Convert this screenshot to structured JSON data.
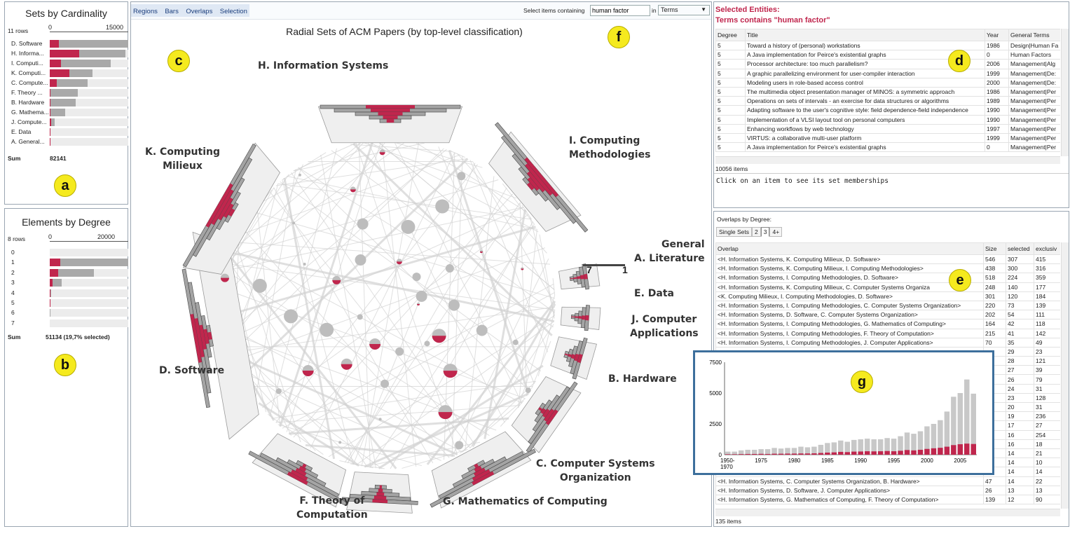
{
  "panel_a": {
    "title": "Sets by Cardinality",
    "rows_label": "11 rows",
    "scale_start": "0",
    "scale_end": "15000",
    "sets": [
      {
        "label": "D. Software",
        "total": 15000,
        "selected": 1700
      },
      {
        "label": "H. Informa...",
        "total": 14500,
        "selected": 5600
      },
      {
        "label": "I. Computi...",
        "total": 11700,
        "selected": 2200
      },
      {
        "label": "K. Computi...",
        "total": 8200,
        "selected": 3700
      },
      {
        "label": "C. Compute...",
        "total": 7200,
        "selected": 1300
      },
      {
        "label": "F. Theory ...",
        "total": 5300,
        "selected": 200
      },
      {
        "label": "B. Hardware",
        "total": 4900,
        "selected": 200
      },
      {
        "label": "G. Mathema...",
        "total": 3000,
        "selected": 100
      },
      {
        "label": "J. Compute...",
        "total": 900,
        "selected": 300
      },
      {
        "label": "E. Data",
        "total": 200,
        "selected": 150
      },
      {
        "label": "A. General...",
        "total": 150,
        "selected": 30
      }
    ],
    "sum_label": "Sum",
    "sum_value": "82141",
    "badge": "a"
  },
  "panel_b": {
    "title": "Elements by Degree",
    "rows_label": "8 rows",
    "scale_start": "0",
    "scale_end": "20000",
    "degrees": [
      {
        "label": "0",
        "total": 0,
        "selected": 0
      },
      {
        "label": "1",
        "total": 29500,
        "selected": 4000
      },
      {
        "label": "2",
        "total": 16500,
        "selected": 3200
      },
      {
        "label": "3",
        "total": 4400,
        "selected": 1000
      },
      {
        "label": "4",
        "total": 500,
        "selected": 200
      },
      {
        "label": "5",
        "total": 150,
        "selected": 80
      },
      {
        "label": "6",
        "total": 50,
        "selected": 20
      },
      {
        "label": "7",
        "total": 10,
        "selected": 5
      }
    ],
    "sum_label": "Sum",
    "sum_value": "51134 (19,7% selected)",
    "badge": "b"
  },
  "toolbar": {
    "tabs": [
      "Regions",
      "Bars",
      "Overlaps",
      "Selection"
    ],
    "select_label": "Select items containing",
    "search_value": "human factor",
    "in_label": "in",
    "dropdown_value": "Terms"
  },
  "main": {
    "title": "Radial Sets of ACM Papers (by top-level classification)",
    "badge_c": "c",
    "badge_f": "f",
    "set_labels": {
      "H": "H. Information Systems",
      "I": "I. Computing\nMethodologies",
      "K": "K. Computing\nMilieux",
      "A": "General\nA. Literature",
      "E": "E. Data",
      "J": "J. Computer\nApplications",
      "B": "B. Hardware",
      "C": "C. Computer Systems\nOrganization",
      "G": "G. Mathematics of Computing",
      "F": "F. Theory of\nComputation",
      "D": "D. Software"
    },
    "legend_left": "7",
    "legend_right": "1"
  },
  "panel_d": {
    "heading": "Selected Entities:",
    "subheading": "Terms contains \"human factor\"",
    "columns": [
      "Degree",
      "Title",
      "Year",
      "General Terms"
    ],
    "rows": [
      [
        "5",
        "Toward a history of (personal) workstations",
        "1986",
        "Design|Human Fa"
      ],
      [
        "5",
        "A Java implementation for Peirce's existential graphs",
        "0",
        "Human Factors"
      ],
      [
        "5",
        "Processor architecture: too much parallelism?",
        "2006",
        "Management|Alg"
      ],
      [
        "5",
        "A graphic parallelizing environment for user-compiler interaction",
        "1999",
        "Management|De:"
      ],
      [
        "5",
        "Modeling users in role-based access control",
        "2000",
        "Management|De:"
      ],
      [
        "5",
        "The multimedia object presentation manager of MINOS: a symmetric approach",
        "1986",
        "Management|Per"
      ],
      [
        "5",
        "Operations on sets of intervals - an exercise for data structures or algorithms",
        "1989",
        "Management|Per"
      ],
      [
        "5",
        "Adapting software to the user's cognitive style: field dependence-field independence",
        "1990",
        "Management|Per"
      ],
      [
        "5",
        "Implementation of a VLSI layout tool on personal computers",
        "1990",
        "Management|Per"
      ],
      [
        "5",
        "Enhancing workflows by web technology",
        "1997",
        "Management|Per"
      ],
      [
        "5",
        "VIRTUS: a collaborative multi-user platform",
        "1999",
        "Management|Per"
      ],
      [
        "5",
        "A Java implementation for Peirce's existential graphs",
        "0",
        "Management|Per"
      ]
    ],
    "item_count": "10056 items",
    "hint": "Click on an item to see its set memberships",
    "badge": "d"
  },
  "panel_e": {
    "heading": "Overlaps by Degree:",
    "tabs": [
      "Single Sets",
      "2",
      "3",
      "4+"
    ],
    "columns": [
      "Overlap",
      "Size",
      "selected",
      "exclusiv"
    ],
    "rows": [
      [
        "<H. Information Systems, K. Computing Milieux, D. Software>",
        "546",
        "307",
        "415"
      ],
      [
        "<H. Information Systems, K. Computing Milieux, I. Computing Methodologies>",
        "438",
        "300",
        "316"
      ],
      [
        "<H. Information Systems, I. Computing Methodologies, D. Software>",
        "518",
        "224",
        "359"
      ],
      [
        "<H. Information Systems, K. Computing Milieux, C. Computer Systems Organiza",
        "248",
        "140",
        "177"
      ],
      [
        "<K. Computing Milieux, I. Computing Methodologies, D. Software>",
        "301",
        "120",
        "184"
      ],
      [
        "<H. Information Systems, I. Computing Methodologies, C. Computer Systems Organization>",
        "220",
        "73",
        "139"
      ],
      [
        "<H. Information Systems, D. Software, C. Computer Systems Organization>",
        "202",
        "54",
        "111"
      ],
      [
        "<H. Information Systems, I. Computing Methodologies, G. Mathematics of Computing>",
        "164",
        "42",
        "118"
      ],
      [
        "<H. Information Systems, I. Computing Methodologies, F. Theory of Computation>",
        "215",
        "41",
        "142"
      ],
      [
        "<H. Information Systems, I. Computing Methodologies, J. Computer Applications>",
        "70",
        "35",
        "49"
      ],
      [
        "",
        "",
        "29",
        "23"
      ],
      [
        "",
        "",
        "28",
        "121"
      ],
      [
        "",
        "",
        "27",
        "39"
      ],
      [
        "",
        "",
        "26",
        "79"
      ],
      [
        "",
        "",
        "24",
        "31"
      ],
      [
        "",
        "",
        "23",
        "128"
      ],
      [
        "",
        "",
        "20",
        "31"
      ],
      [
        "",
        "",
        "19",
        "236"
      ],
      [
        "",
        "",
        "17",
        "27"
      ],
      [
        "",
        "",
        "16",
        "254"
      ],
      [
        "",
        "",
        "16",
        "18"
      ],
      [
        "",
        "",
        "14",
        "21"
      ],
      [
        "",
        "",
        "14",
        "10"
      ],
      [
        "",
        "",
        "14",
        "14"
      ],
      [
        "<H. Information Systems, C. Computer Systems Organization, B. Hardware>",
        "47",
        "14",
        "22"
      ],
      [
        "<H. Information Systems, D. Software, J. Computer Applications>",
        "26",
        "13",
        "13"
      ],
      [
        "<H. Information Systems, G. Mathematics of Computing, F. Theory of Computation>",
        "139",
        "12",
        "90"
      ]
    ],
    "item_count": "135 items",
    "badge": "e"
  },
  "panel_g": {
    "badge": "g",
    "chart_data": {
      "type": "bar",
      "categories": [
        "1950-1970",
        "1971",
        "1972",
        "1973",
        "1974",
        "1975",
        "1976",
        "1977",
        "1978",
        "1979",
        "1980",
        "1981",
        "1982",
        "1983",
        "1984",
        "1985",
        "1986",
        "1987",
        "1988",
        "1989",
        "1990",
        "1991",
        "1992",
        "1993",
        "1994",
        "1995",
        "1996",
        "1997",
        "1998",
        "1999",
        "2000",
        "2001",
        "2002",
        "2003",
        "2004",
        "2005",
        "2006",
        "2007"
      ],
      "x_tick_labels": [
        "1950-\n1970",
        "1975",
        "1980",
        "1985",
        "1990",
        "1995",
        "2000",
        "2005"
      ],
      "y_tick_labels": [
        "0",
        "2500",
        "5000",
        "7500"
      ],
      "ylim": [
        0,
        7500
      ],
      "series": [
        {
          "values": [
            250,
            250,
            350,
            400,
            400,
            450,
            450,
            550,
            500,
            550,
            550,
            650,
            600,
            650,
            800,
            950,
            1000,
            1150,
            1050,
            1200,
            1250,
            1300,
            1250,
            1250,
            1350,
            1300,
            1500,
            1800,
            1700,
            1900,
            2300,
            2500,
            2800,
            3500,
            4700,
            5000,
            6100,
            4950
          ]
        },
        {
          "values": [
            40,
            40,
            50,
            60,
            60,
            70,
            60,
            80,
            80,
            90,
            90,
            100,
            100,
            110,
            140,
            170,
            190,
            230,
            210,
            250,
            260,
            280,
            270,
            280,
            300,
            280,
            320,
            380,
            350,
            400,
            470,
            520,
            560,
            650,
            780,
            850,
            900,
            870
          ]
        }
      ]
    }
  },
  "colors": {
    "selected": "#c0264d",
    "unselected": "#a9a9a9",
    "badge": "#f5ea1e"
  }
}
